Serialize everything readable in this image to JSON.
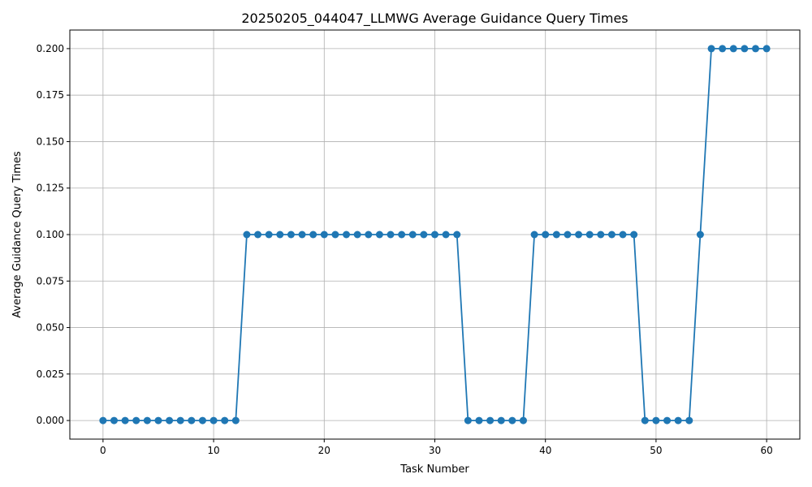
{
  "chart_data": {
    "type": "line",
    "title": "20250205_044047_LLMWG Average Guidance Query Times",
    "xlabel": "Task Number",
    "ylabel": "Average Guidance Query Times",
    "xlim": [
      -3,
      63
    ],
    "ylim": [
      -0.01,
      0.21
    ],
    "xticks": [
      0,
      10,
      20,
      30,
      40,
      50,
      60
    ],
    "xtick_labels": [
      "0",
      "10",
      "20",
      "30",
      "40",
      "50",
      "60"
    ],
    "yticks": [
      0,
      0.025,
      0.05,
      0.075,
      0.1,
      0.125,
      0.15,
      0.175,
      0.2
    ],
    "ytick_labels": [
      "0.000",
      "0.025",
      "0.050",
      "0.075",
      "0.100",
      "0.125",
      "0.150",
      "0.175",
      "0.200"
    ],
    "grid": true,
    "color": "#1f77b4",
    "marker": "circle",
    "series": [
      {
        "x": [
          0,
          1,
          2,
          3,
          4,
          5,
          6,
          7,
          8,
          9,
          10,
          11,
          12,
          13,
          14,
          15,
          16,
          17,
          18,
          19,
          20,
          21,
          22,
          23,
          24,
          25,
          26,
          27,
          28,
          29,
          30,
          31,
          32,
          33,
          34,
          35,
          36,
          37,
          38,
          39,
          40,
          41,
          42,
          43,
          44,
          45,
          46,
          47,
          48,
          49,
          50,
          51,
          52,
          53,
          54,
          55,
          56,
          57,
          58,
          59,
          60
        ],
        "values": [
          0,
          0,
          0,
          0,
          0,
          0,
          0,
          0,
          0,
          0,
          0,
          0,
          0,
          0.1,
          0.1,
          0.1,
          0.1,
          0.1,
          0.1,
          0.1,
          0.1,
          0.1,
          0.1,
          0.1,
          0.1,
          0.1,
          0.1,
          0.1,
          0.1,
          0.1,
          0.1,
          0.1,
          0.1,
          0,
          0,
          0,
          0,
          0,
          0,
          0.1,
          0.1,
          0.1,
          0.1,
          0.1,
          0.1,
          0.1,
          0.1,
          0.1,
          0.1,
          0,
          0,
          0,
          0,
          0,
          0.1,
          0.2,
          0.2,
          0.2,
          0.2,
          0.2,
          0.2
        ]
      }
    ]
  }
}
